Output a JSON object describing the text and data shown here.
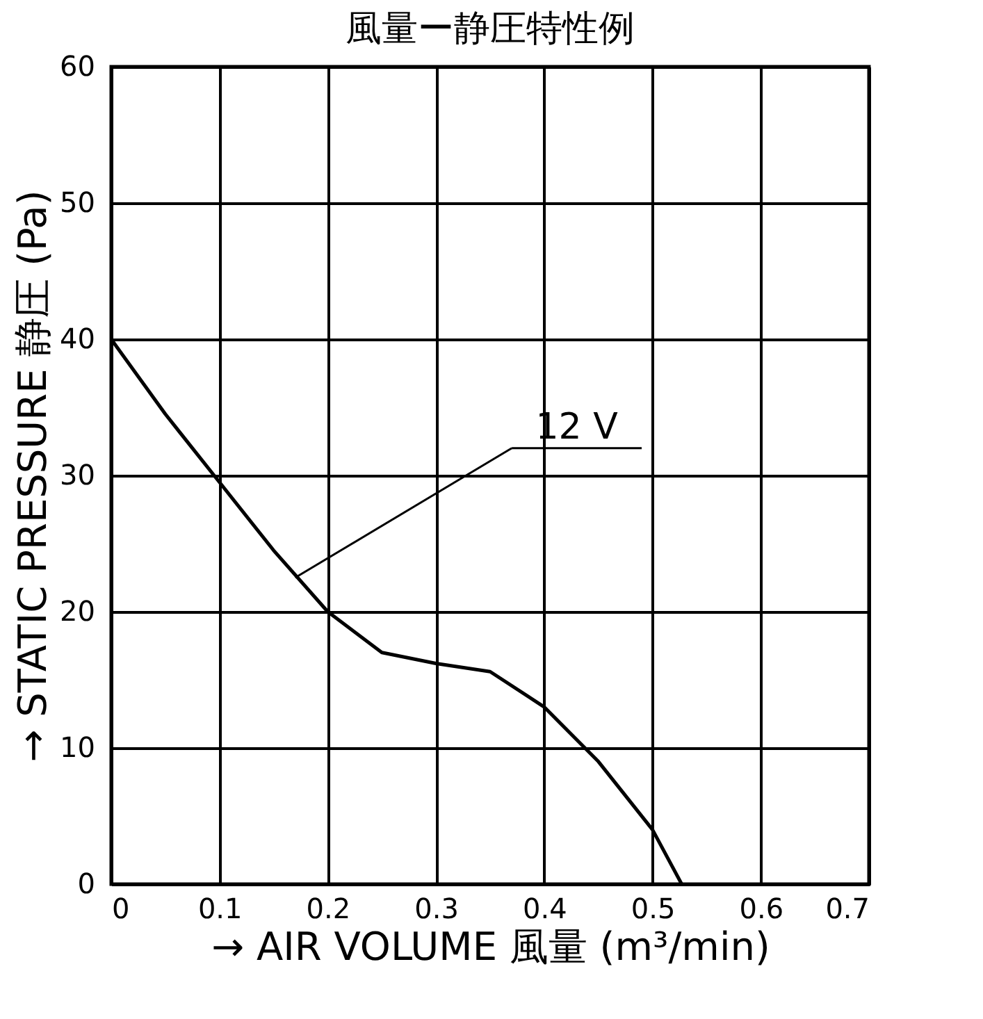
{
  "chart_data": {
    "type": "line",
    "title": "風量ー静圧特性例",
    "xlabel": "→ AIR VOLUME 風量 (m³/min)",
    "ylabel": "→ STATIC PRESSURE 静圧 (Pa)",
    "x": [
      0,
      0.05,
      0.1,
      0.15,
      0.2,
      0.25,
      0.3,
      0.35,
      0.4,
      0.45,
      0.5,
      0.527
    ],
    "series": [
      {
        "color": "#000000",
        "values": [
          40,
          34.5,
          29.5,
          24.5,
          20,
          17,
          16.2,
          15.6,
          13,
          9,
          4,
          0
        ]
      }
    ],
    "annotations": [
      {
        "text": "12 V",
        "x": 0.17,
        "y": 22.5
      }
    ],
    "xlim": [
      0,
      0.7
    ],
    "xticks": [
      0,
      0.1,
      0.2,
      0.3,
      0.4,
      0.5,
      0.6,
      0.7
    ],
    "ylim": [
      0,
      60
    ],
    "yticks": [
      0,
      10,
      20,
      30,
      40,
      50,
      60
    ],
    "grid": true,
    "marker": "none",
    "line_style": "solid"
  }
}
